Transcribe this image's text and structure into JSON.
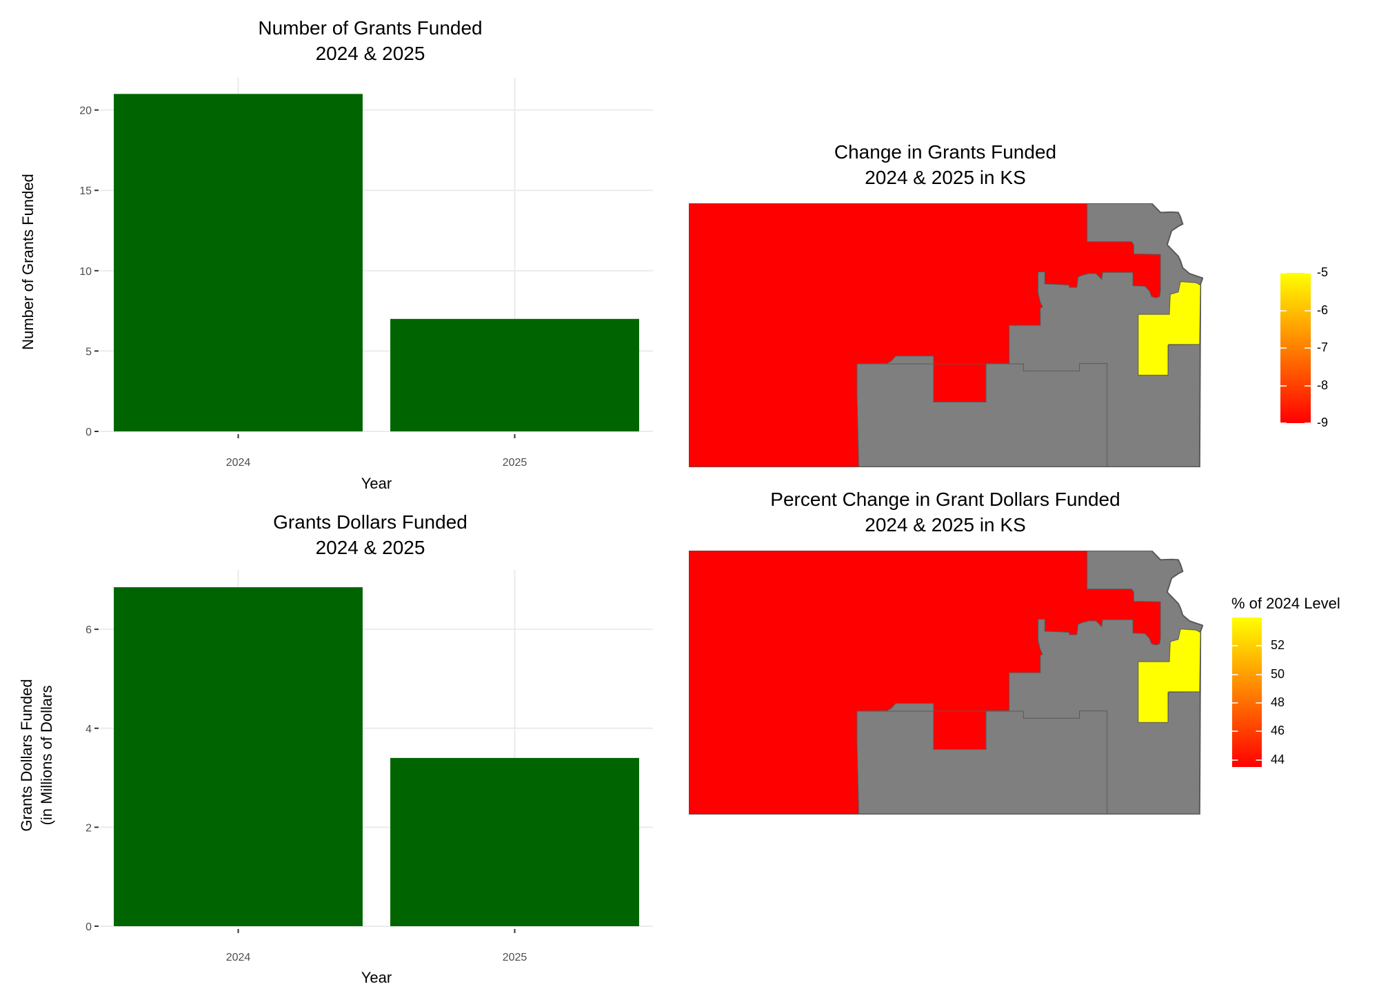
{
  "colors": {
    "bar": "#006400",
    "grid": "#ebebeb",
    "red": "#ff0000",
    "yellow": "#ffff00",
    "gray": "#7f7f7f",
    "border": "#595959"
  },
  "chart_data": [
    {
      "type": "bar",
      "title_line1": "Number of Grants Funded",
      "title_line2": "2024 & 2025",
      "xlabel": "Year",
      "ylabel": "Number of Grants Funded",
      "ylabel_line2": "",
      "categories": [
        "2024",
        "2025"
      ],
      "values": [
        21,
        7
      ],
      "ylim": [
        0,
        22
      ],
      "yticks": [
        0,
        5,
        10,
        15,
        20
      ],
      "grid": true
    },
    {
      "type": "bar",
      "title_line1": "Grants Dollars Funded",
      "title_line2": "2024 & 2025",
      "xlabel": "Year",
      "ylabel": "Grants Dollars Funded",
      "ylabel_line2": "(in Millions of Dollars",
      "categories": [
        "2024",
        "2025"
      ],
      "values": [
        6.85,
        3.4
      ],
      "ylim": [
        0,
        7.2
      ],
      "yticks": [
        0,
        2,
        4,
        6
      ],
      "grid": true
    },
    {
      "type": "heatmap",
      "subtype": "choropleth",
      "title_line1": "Change in Grants Funded",
      "title_line2": "2024 & 2025 in KS",
      "legend_title": "",
      "legend_ticks": [
        "-5",
        "-6",
        "-7",
        "-8",
        "-9"
      ],
      "legend_range": [
        -9,
        -5
      ],
      "legend_position": "right",
      "regions": [
        {
          "name": "western",
          "value": -9
        },
        {
          "name": "east-central",
          "value": -5
        },
        {
          "name": "other",
          "value": null
        }
      ]
    },
    {
      "type": "heatmap",
      "subtype": "choropleth",
      "title_line1": "Percent Change in Grant Dollars Funded",
      "title_line2": "2024 & 2025 in KS",
      "legend_title": "% of 2024 Level",
      "legend_ticks": [
        "52",
        "50",
        "48",
        "46",
        "44"
      ],
      "legend_range": [
        43.5,
        54
      ],
      "legend_position": "right",
      "regions": [
        {
          "name": "western",
          "value": 43.5
        },
        {
          "name": "east-central",
          "value": 54
        },
        {
          "name": "other",
          "value": null
        }
      ]
    }
  ]
}
